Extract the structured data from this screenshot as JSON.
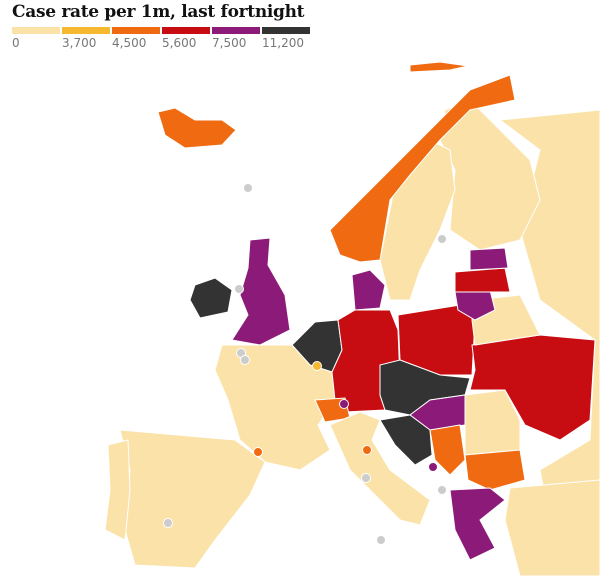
{
  "title": "Case rate per 1m, last fortnight",
  "legend": [
    {
      "label": "0",
      "color": "#fbe2a8"
    },
    {
      "label": "3,700",
      "color": "#f5b82e"
    },
    {
      "label": "4,500",
      "color": "#ef6a10"
    },
    {
      "label": "5,600",
      "color": "#c70d12"
    },
    {
      "label": "7,500",
      "color": "#8c1a79"
    },
    {
      "label": "11,200",
      "color": "#333333"
    }
  ],
  "no_data_color": "#cccccc"
}
